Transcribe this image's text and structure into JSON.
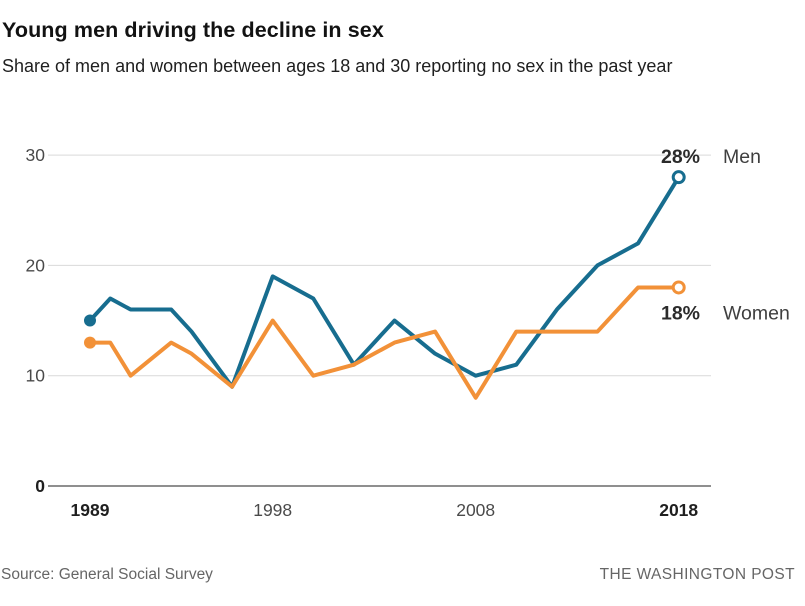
{
  "header": {
    "title": "Young men driving the decline in sex",
    "subtitle": "Share of men and women between ages 18 and 30 reporting no sex in the past year"
  },
  "chart_data": {
    "type": "line",
    "title": "Young men driving the decline in sex",
    "subtitle": "Share of men and women between ages 18 and 30 reporting no sex in the past year",
    "unit": "%",
    "x": [
      1989,
      1990,
      1991,
      1993,
      1994,
      1996,
      1998,
      2000,
      2002,
      2004,
      2006,
      2008,
      2010,
      2012,
      2014,
      2016,
      2018
    ],
    "series": [
      {
        "name": "Men",
        "color": "#176d8f",
        "values": [
          15,
          17,
          16,
          16,
          14,
          9,
          19,
          17,
          11,
          15,
          12,
          10,
          11,
          16,
          20,
          22,
          28
        ],
        "end_label": "28%",
        "start_value": 15,
        "end_value": 28
      },
      {
        "name": "Women",
        "color": "#f29138",
        "values": [
          13,
          13,
          10,
          13,
          12,
          9,
          15,
          10,
          11,
          13,
          14,
          8,
          14,
          14,
          14,
          18,
          18
        ],
        "end_label": "18%",
        "start_value": 13,
        "end_value": 18
      }
    ],
    "xlabel": "",
    "ylabel": "",
    "ylim": [
      0,
      30
    ],
    "yticks": [
      0,
      10,
      20,
      30
    ],
    "xticks": [
      1989,
      1998,
      2008,
      2018
    ],
    "xticks_bold": [
      1989,
      2018
    ],
    "grid": "horizontal",
    "legend_position": "end-of-line",
    "markers": {
      "start": "filled-dot",
      "end": "open-circle"
    }
  },
  "colors": {
    "men_line": "#176d8f",
    "women_line": "#f29138",
    "gridline": "#d9d9d9",
    "axis_baseline": "#8f8f8f",
    "tick": "#4a4a4a",
    "tick_strong": "#1f1f1f",
    "annotation_value": "#2b2b2b",
    "annotation_name": "#3f3f3f"
  },
  "footer": {
    "source": "Source: General Social Survey",
    "credit": "THE WASHINGTON POST"
  }
}
